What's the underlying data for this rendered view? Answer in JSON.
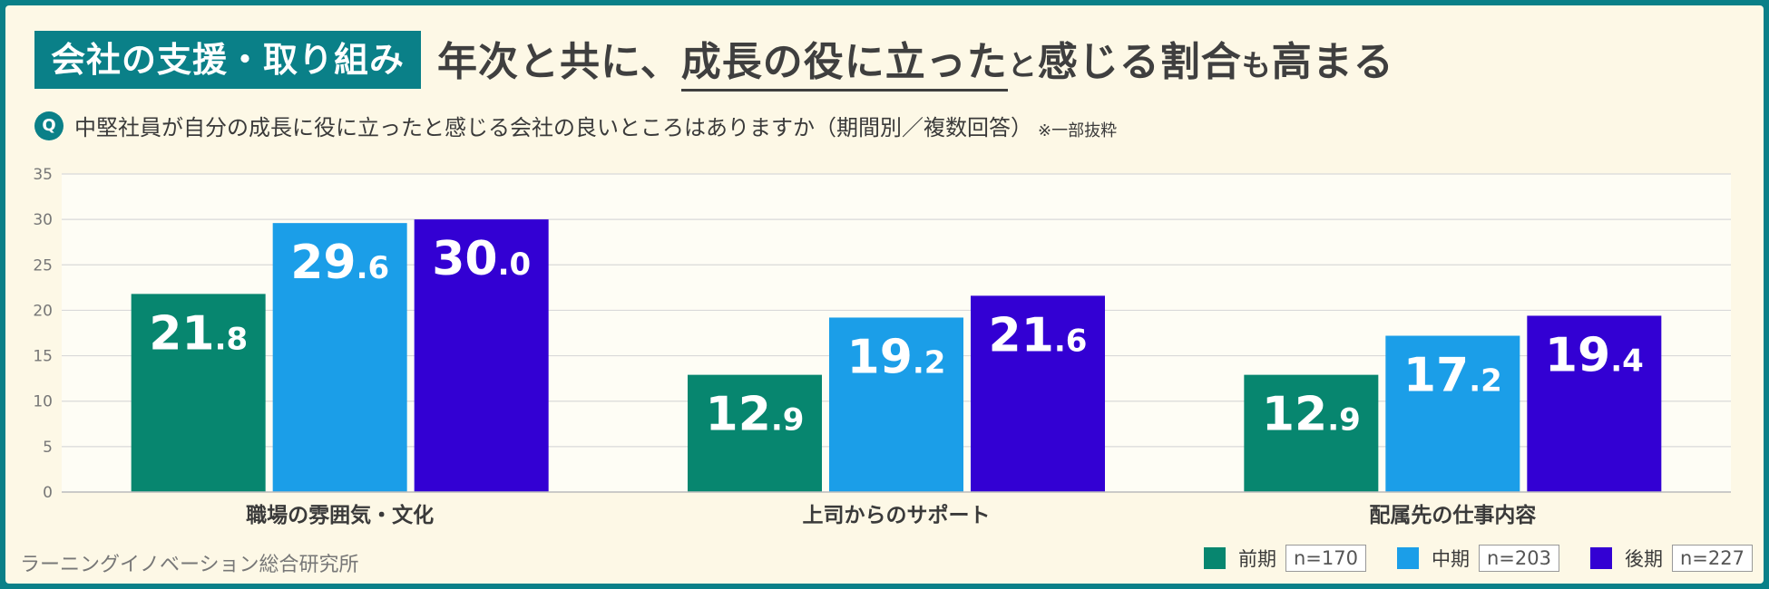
{
  "header": {
    "tag": "会社の支援・取り組み",
    "headline_parts": [
      "年次と共に、",
      "成長の役に立った",
      "と",
      "感じる割合",
      "も",
      "高まる"
    ]
  },
  "question": {
    "badge": "Q",
    "text": "中堅社員が自分の成長に役に立ったと感じる会社の良いところはありますか（期間別／複数回答）",
    "note": "※一部抜粋"
  },
  "footer": {
    "source": "ラーニングイノベーション総合研究所"
  },
  "legend": [
    {
      "label": "前期",
      "n": "n=170",
      "color": "#07866f"
    },
    {
      "label": "中期",
      "n": "n=203",
      "color": "#1b9ee8"
    },
    {
      "label": "後期",
      "n": "n=227",
      "color": "#3300d3"
    }
  ],
  "chart_data": {
    "type": "bar",
    "categories": [
      "職場の雰囲気・文化",
      "上司からのサポート",
      "配属先の仕事内容"
    ],
    "series": [
      {
        "name": "前期",
        "values": [
          21.8,
          12.9,
          12.9
        ]
      },
      {
        "name": "中期",
        "values": [
          29.6,
          19.2,
          17.2
        ]
      },
      {
        "name": "後期",
        "values": [
          30.0,
          21.6,
          19.4
        ]
      }
    ],
    "ylim": [
      0,
      35
    ],
    "yticks": [
      0,
      5,
      10,
      15,
      20,
      25,
      30,
      35
    ],
    "grid": true,
    "legend_position": "bottom-right",
    "colors": [
      "#07866f",
      "#1b9ee8",
      "#3300d3"
    ]
  }
}
